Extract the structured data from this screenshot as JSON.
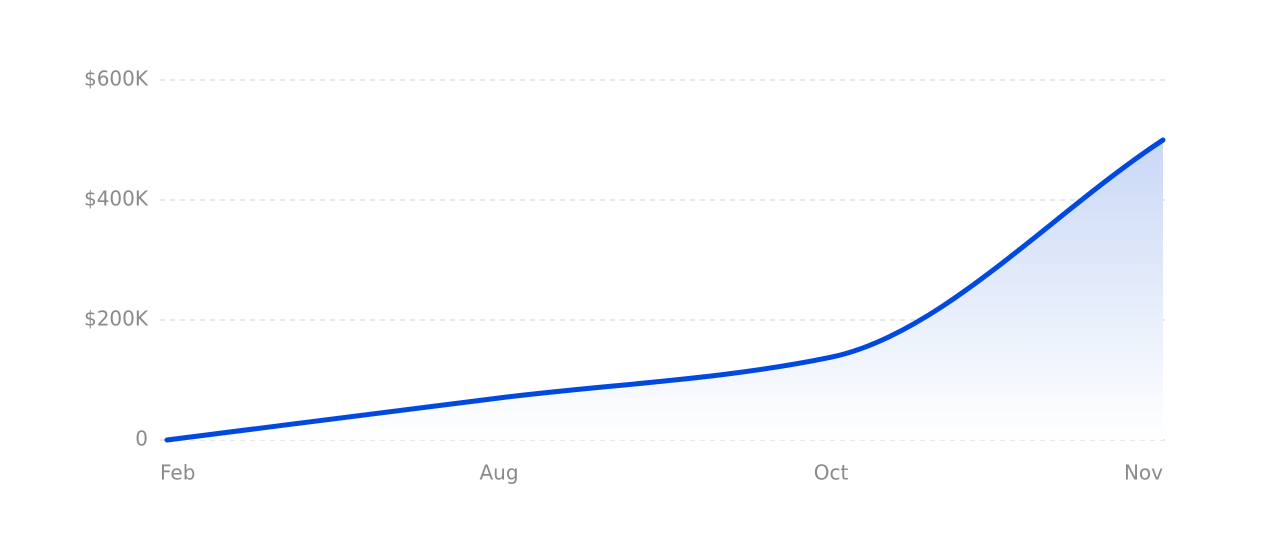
{
  "chart_data": {
    "type": "area",
    "categories": [
      "Feb",
      "Aug",
      "Oct",
      "Nov"
    ],
    "values": [
      0,
      70000,
      138000,
      500000
    ],
    "color": "#0049e0",
    "ylim": [
      0,
      600000
    ],
    "yticks": [
      0,
      {
        "value": 200000,
        "label": "$200K"
      },
      {
        "value": 400000,
        "label": "$400K"
      },
      {
        "value": 600000,
        "label": "$600K"
      }
    ],
    "grid": true
  }
}
